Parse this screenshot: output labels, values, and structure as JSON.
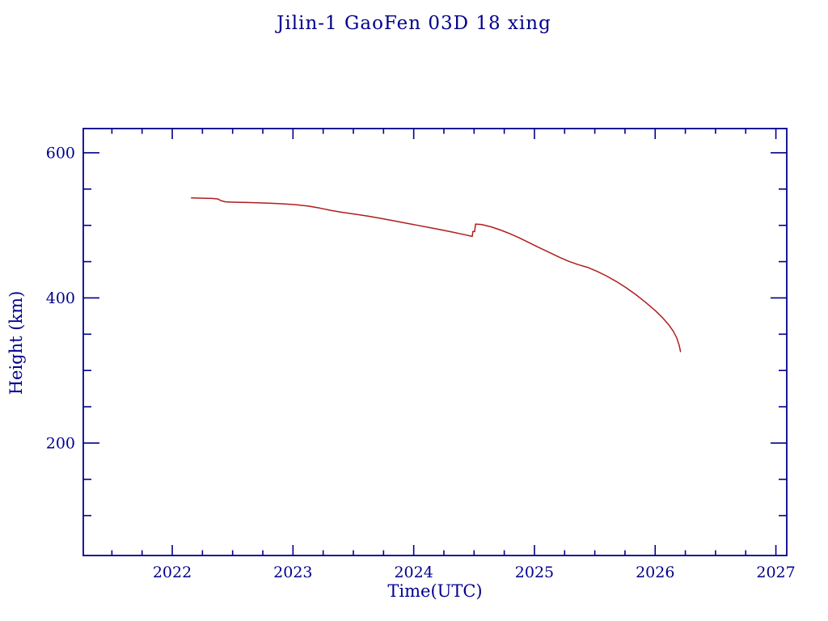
{
  "title": "Jilin-1 GaoFen 03D 18 xing",
  "colors": {
    "text_and_axes": "#00008c",
    "curve": "#b01d1d",
    "background": "#ffffff"
  },
  "chart_data": {
    "type": "line",
    "title": "Jilin-1 GaoFen 03D 18 xing",
    "xlabel": "Time(UTC)",
    "ylabel": "Height (km)",
    "grid": false,
    "legend": "none",
    "xlim": [
      2021.263,
      2027.09
    ],
    "ylim": [
      45,
      633.4
    ],
    "x_ticks_major": [
      2022,
      2023,
      2024,
      2025,
      2026,
      2027
    ],
    "x_tick_labels": [
      "2022",
      "2023",
      "2024",
      "2025",
      "2026",
      "2027"
    ],
    "x_ticks_minor": [
      2021.5,
      2021.75,
      2022.25,
      2022.5,
      2022.75,
      2023.25,
      2023.5,
      2023.75,
      2024.25,
      2024.5,
      2024.75,
      2025.25,
      2025.5,
      2025.75,
      2026.25,
      2026.5,
      2026.75
    ],
    "y_ticks_major": [
      200,
      400,
      600
    ],
    "y_tick_labels": [
      "200",
      "400",
      "600"
    ],
    "y_ticks_minor": [
      100,
      150,
      250,
      300,
      350,
      450,
      500,
      550
    ],
    "series": [
      {
        "name": "orbital height",
        "color": "#b01d1d",
        "points": [
          [
            2022.159,
            537.9
          ],
          [
            2022.25,
            537.5
          ],
          [
            2022.33,
            537.1
          ],
          [
            2022.38,
            536.3
          ],
          [
            2022.4,
            534.2
          ],
          [
            2022.44,
            532.4
          ],
          [
            2022.52,
            531.9
          ],
          [
            2022.62,
            531.5
          ],
          [
            2022.72,
            531.0
          ],
          [
            2022.82,
            530.4
          ],
          [
            2022.92,
            529.6
          ],
          [
            2023.02,
            528.5
          ],
          [
            2023.12,
            526.8
          ],
          [
            2023.22,
            523.9
          ],
          [
            2023.32,
            520.4
          ],
          [
            2023.42,
            517.6
          ],
          [
            2023.52,
            515.3
          ],
          [
            2023.62,
            512.8
          ],
          [
            2023.72,
            509.8
          ],
          [
            2023.82,
            506.8
          ],
          [
            2023.92,
            503.6
          ],
          [
            2024.02,
            500.4
          ],
          [
            2024.12,
            497.3
          ],
          [
            2024.22,
            494.1
          ],
          [
            2024.32,
            490.8
          ],
          [
            2024.42,
            487.2
          ],
          [
            2024.47,
            485.3
          ],
          [
            2024.485,
            484.9
          ],
          [
            2024.49,
            491.6
          ],
          [
            2024.505,
            491.4
          ],
          [
            2024.512,
            501.8
          ],
          [
            2024.56,
            501.2
          ],
          [
            2024.64,
            498.0
          ],
          [
            2024.72,
            493.5
          ],
          [
            2024.8,
            488.3
          ],
          [
            2024.88,
            482.3
          ],
          [
            2024.96,
            475.8
          ],
          [
            2025.04,
            469.3
          ],
          [
            2025.12,
            463.0
          ],
          [
            2025.2,
            456.6
          ],
          [
            2025.28,
            450.8
          ],
          [
            2025.36,
            446.0
          ],
          [
            2025.44,
            442.2
          ],
          [
            2025.52,
            436.5
          ],
          [
            2025.6,
            430.0
          ],
          [
            2025.68,
            422.5
          ],
          [
            2025.76,
            414.0
          ],
          [
            2025.84,
            404.5
          ],
          [
            2025.92,
            394.0
          ],
          [
            2026.0,
            382.5
          ],
          [
            2026.06,
            373.0
          ],
          [
            2026.11,
            363.5
          ],
          [
            2026.15,
            354.0
          ],
          [
            2026.18,
            344.5
          ],
          [
            2026.2,
            334.0
          ],
          [
            2026.21,
            326.0
          ]
        ]
      }
    ]
  }
}
